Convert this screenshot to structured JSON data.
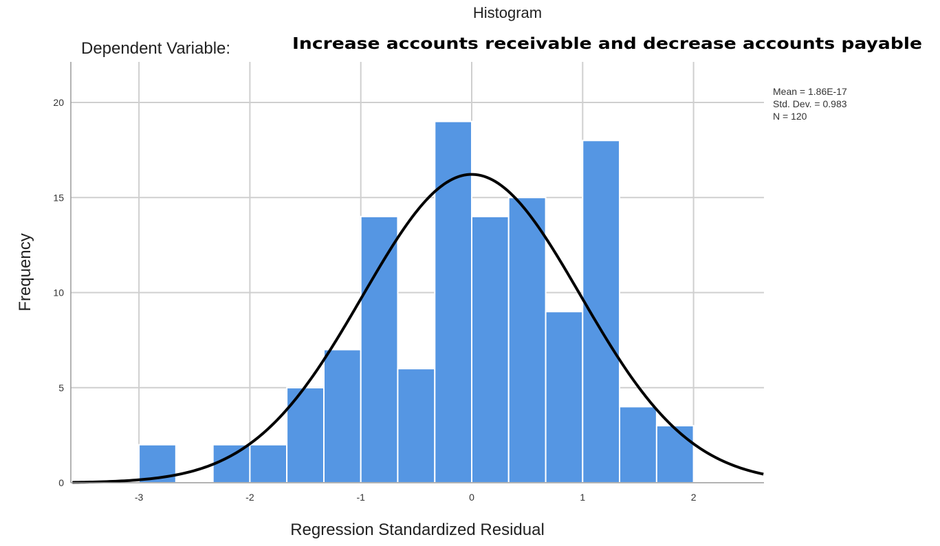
{
  "chart_data": {
    "type": "histogram",
    "title": "Histogram",
    "dependent_variable_label": "Dependent Variable:",
    "dependent_variable_value": "Increase accounts receivable and decrease accounts payable",
    "xlabel": "Regression Standardized Residual",
    "ylabel": "Frequency",
    "xlim": [
      -3.6,
      2.63
    ],
    "ylim": [
      0,
      22
    ],
    "x_ticks": [
      -3,
      -2,
      -1,
      0,
      1,
      2
    ],
    "x_tick_labels": [
      "-3",
      "-2",
      "-1",
      "0",
      "1",
      "2"
    ],
    "y_ticks": [
      0,
      5,
      10,
      15,
      20
    ],
    "y_tick_labels": [
      "0",
      "5",
      "10",
      "15",
      "20"
    ],
    "bin_width": 0.333,
    "bins": [
      {
        "x0": -3.0,
        "x1": -2.667,
        "count": 2
      },
      {
        "x0": -2.333,
        "x1": -2.0,
        "count": 2
      },
      {
        "x0": -2.0,
        "x1": -1.667,
        "count": 2
      },
      {
        "x0": -1.667,
        "x1": -1.333,
        "count": 5
      },
      {
        "x0": -1.333,
        "x1": -1.0,
        "count": 7
      },
      {
        "x0": -1.0,
        "x1": -0.667,
        "count": 14
      },
      {
        "x0": -0.667,
        "x1": -0.333,
        "count": 6
      },
      {
        "x0": -0.333,
        "x1": 0.0,
        "count": 19
      },
      {
        "x0": 0.0,
        "x1": 0.333,
        "count": 14
      },
      {
        "x0": 0.333,
        "x1": 0.667,
        "count": 15
      },
      {
        "x0": 0.667,
        "x1": 1.0,
        "count": 9
      },
      {
        "x0": 1.0,
        "x1": 1.333,
        "count": 18
      },
      {
        "x0": 1.333,
        "x1": 1.667,
        "count": 4
      },
      {
        "x0": 1.667,
        "x1": 2.0,
        "count": 3
      }
    ],
    "normal_curve": {
      "mean": 0.0,
      "std_dev": 0.983,
      "n": 120
    },
    "stats": {
      "mean_label": "Mean = 1.86E-17",
      "std_label": "Std. Dev. = 0.983",
      "n_label": "N = 120"
    },
    "grid": true,
    "colors": {
      "bar": "#5596e3",
      "curve": "#000000",
      "grid": "#cfcfcf"
    }
  }
}
